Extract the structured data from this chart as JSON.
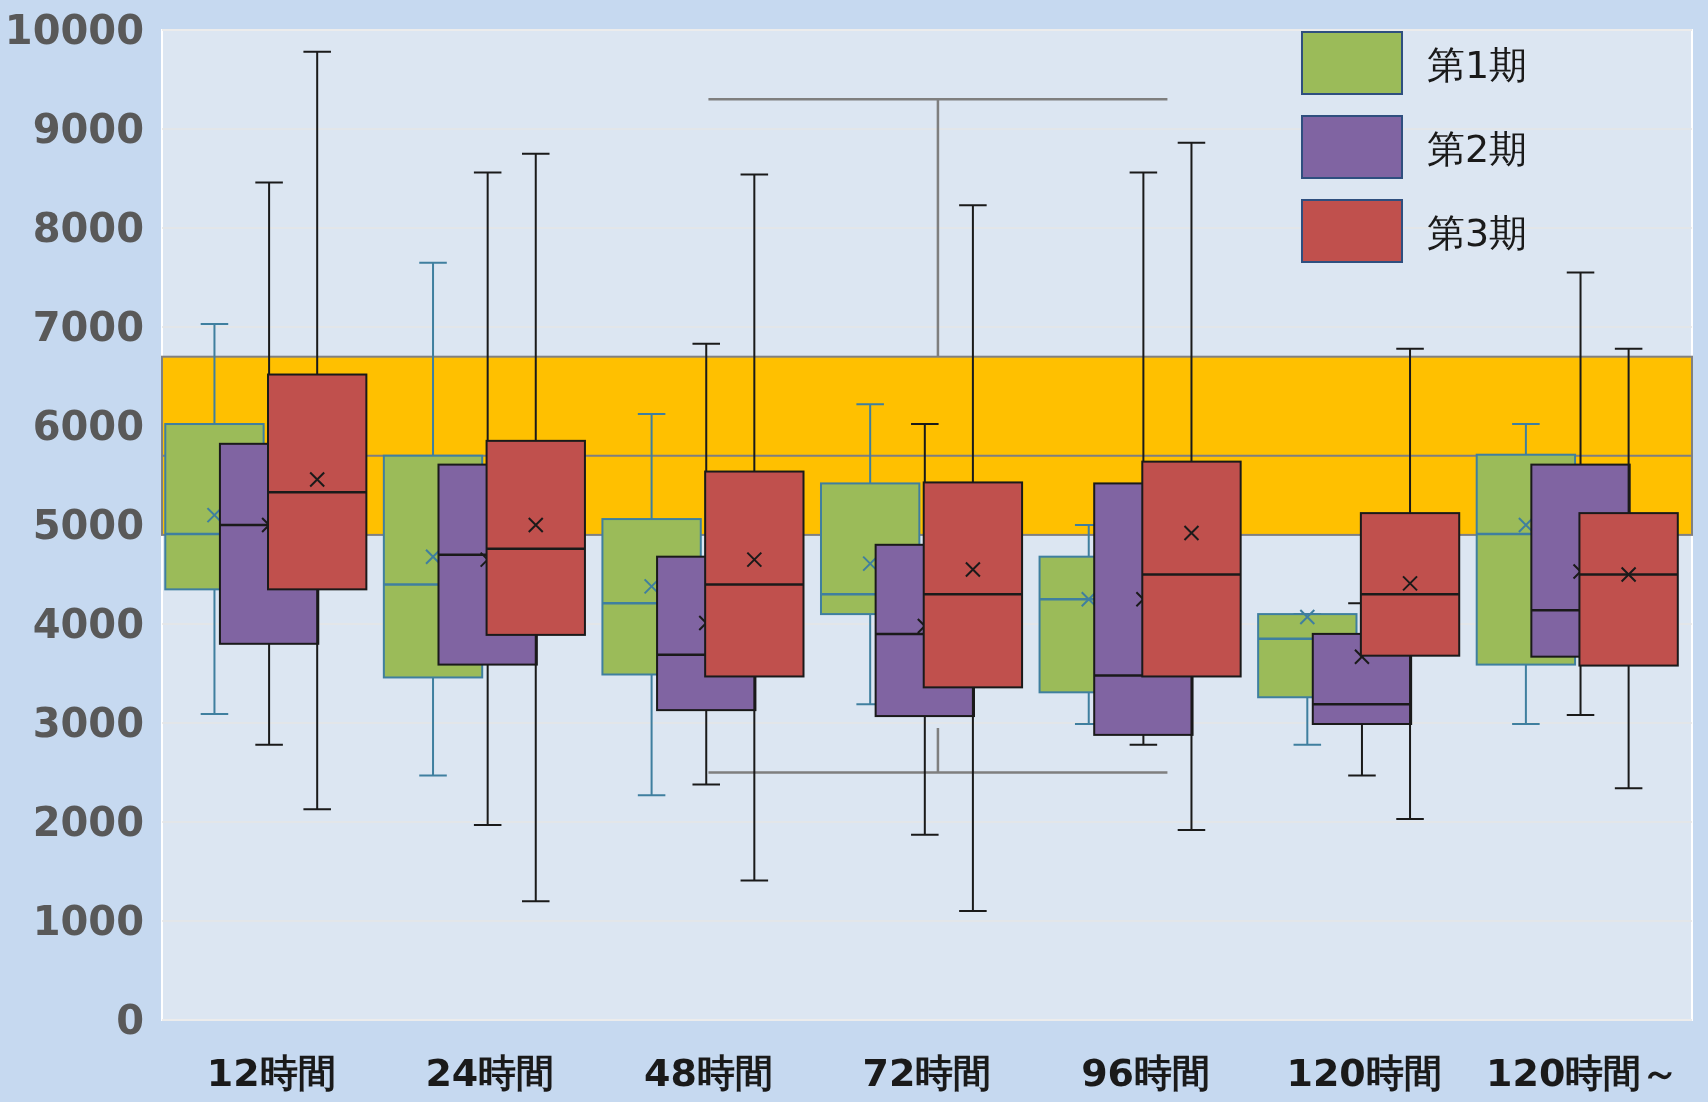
{
  "chart_data": {
    "type": "box",
    "categories": [
      "12時間",
      "24時間",
      "48時間",
      "72時間",
      "96時間",
      "120時間",
      "120時間～"
    ],
    "series": [
      {
        "name": "第1期",
        "color": "#9bbb59",
        "boxes": [
          {
            "low": 3090,
            "q1": 4350,
            "median": 4910,
            "q3": 6020,
            "high": 7030,
            "mean": 5100
          },
          {
            "low": 2470,
            "q1": 3460,
            "median": 4400,
            "q3": 5700,
            "high": 7650,
            "mean": 4680
          },
          {
            "low": 2270,
            "q1": 3490,
            "median": 4210,
            "q3": 5060,
            "high": 6120,
            "mean": 4380
          },
          {
            "low": 3190,
            "q1": 4100,
            "median": 4300,
            "q3": 5420,
            "high": 6220,
            "mean": 4610
          },
          {
            "low": 2990,
            "q1": 3310,
            "median": 4250,
            "q3": 4680,
            "high": 5000,
            "mean": 4250
          },
          {
            "low": 2780,
            "q1": 3260,
            "median": 3850,
            "q3": 4100,
            "high": 4100,
            "mean": 4070
          },
          {
            "low": 2990,
            "q1": 3590,
            "median": 4910,
            "q3": 5710,
            "high": 6020,
            "mean": 5000
          }
        ]
      },
      {
        "name": "第2期",
        "color": "#8064a2",
        "boxes": [
          {
            "low": 2780,
            "q1": 3800,
            "median": 5000,
            "q3": 5820,
            "high": 8460,
            "mean": 5000
          },
          {
            "low": 1970,
            "q1": 3590,
            "median": 4700,
            "q3": 5610,
            "high": 8560,
            "mean": 4650
          },
          {
            "low": 2380,
            "q1": 3130,
            "median": 3690,
            "q3": 4680,
            "high": 6830,
            "mean": 4010
          },
          {
            "low": 1870,
            "q1": 3070,
            "median": 3900,
            "q3": 4800,
            "high": 6020,
            "mean": 3980
          },
          {
            "low": 2780,
            "q1": 2880,
            "median": 3480,
            "q3": 5420,
            "high": 8560,
            "mean": 4250
          },
          {
            "low": 2470,
            "q1": 2990,
            "median": 3190,
            "q3": 3900,
            "high": 4210,
            "mean": 3670
          },
          {
            "low": 3080,
            "q1": 3670,
            "median": 4140,
            "q3": 5610,
            "high": 7550,
            "mean": 4530
          }
        ]
      },
      {
        "name": "第3期",
        "color": "#c0504d",
        "boxes": [
          {
            "low": 2130,
            "q1": 4350,
            "median": 5330,
            "q3": 6520,
            "high": 9780,
            "mean": 5460
          },
          {
            "low": 1200,
            "q1": 3890,
            "median": 4760,
            "q3": 5850,
            "high": 8750,
            "mean": 5000
          },
          {
            "low": 1410,
            "q1": 3470,
            "median": 4400,
            "q3": 5540,
            "high": 8540,
            "mean": 4650
          },
          {
            "low": 1100,
            "q1": 3360,
            "median": 4300,
            "q3": 5430,
            "high": 8230,
            "mean": 4550
          },
          {
            "low": 1920,
            "q1": 3470,
            "median": 4500,
            "q3": 5640,
            "high": 8860,
            "mean": 4920
          },
          {
            "low": 2030,
            "q1": 3680,
            "median": 4300,
            "q3": 5120,
            "high": 6780,
            "mean": 4410
          },
          {
            "low": 2340,
            "q1": 3580,
            "median": 4500,
            "q3": 5120,
            "high": 6780,
            "mean": 4500
          }
        ]
      }
    ],
    "ylim": [
      0,
      10000
    ],
    "yticks": [
      0,
      1000,
      2000,
      3000,
      4000,
      5000,
      6000,
      7000,
      8000,
      9000,
      10000
    ],
    "grid": "y",
    "legend": "top right",
    "bands": [
      {
        "axis": "y",
        "from": 4900,
        "to": 6700,
        "color": "#ffc000"
      }
    ],
    "ref_lines": [
      {
        "axis": "y",
        "value": 5700,
        "color": "#7f7f7f"
      }
    ]
  }
}
